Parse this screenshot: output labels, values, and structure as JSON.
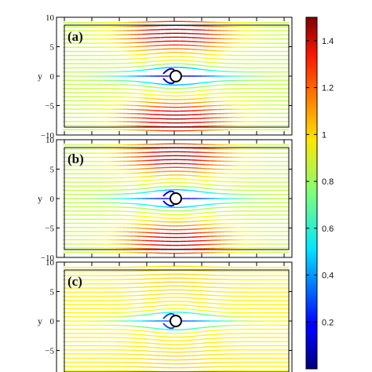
{
  "chart_data": {
    "type": "streamline",
    "colormap": "jet",
    "colorbar": {
      "range": [
        0.0,
        1.5
      ],
      "ticks": [
        "0.2",
        "0.4",
        "0.6",
        "0.8",
        "1",
        "1.2",
        "1.4"
      ],
      "tick_values": [
        0.2,
        0.4,
        0.6,
        0.8,
        1.0,
        1.2,
        1.4
      ]
    },
    "panels": [
      {
        "label": "(a)",
        "ylabel": "y",
        "ylim": [
          -10,
          10
        ],
        "yticks": [
          "10",
          "5",
          "0",
          "−5",
          "−10"
        ],
        "ytick_values": [
          10,
          5,
          0,
          -5,
          -10
        ],
        "free_stream_speed": 0.85,
        "peak_speed": 1.45,
        "wake_min_speed": 0.1
      },
      {
        "label": "(b)",
        "ylabel": "y",
        "ylim": [
          -10,
          10
        ],
        "yticks": [
          "10",
          "5",
          "0",
          "−5",
          "−10"
        ],
        "ytick_values": [
          10,
          5,
          0,
          -5,
          -10
        ],
        "free_stream_speed": 0.85,
        "peak_speed": 1.42,
        "wake_min_speed": 0.15
      },
      {
        "label": "(c)",
        "ylabel": "y",
        "ylim": [
          -10,
          10
        ],
        "yticks": [
          "10",
          "5",
          "0",
          "−5"
        ],
        "ytick_values": [
          10,
          5,
          0,
          -5
        ],
        "free_stream_speed": 0.95,
        "peak_speed": 1.0,
        "wake_min_speed": 0.3
      }
    ],
    "cylinder": {
      "x": 0,
      "y": 0,
      "radius": 1
    }
  }
}
